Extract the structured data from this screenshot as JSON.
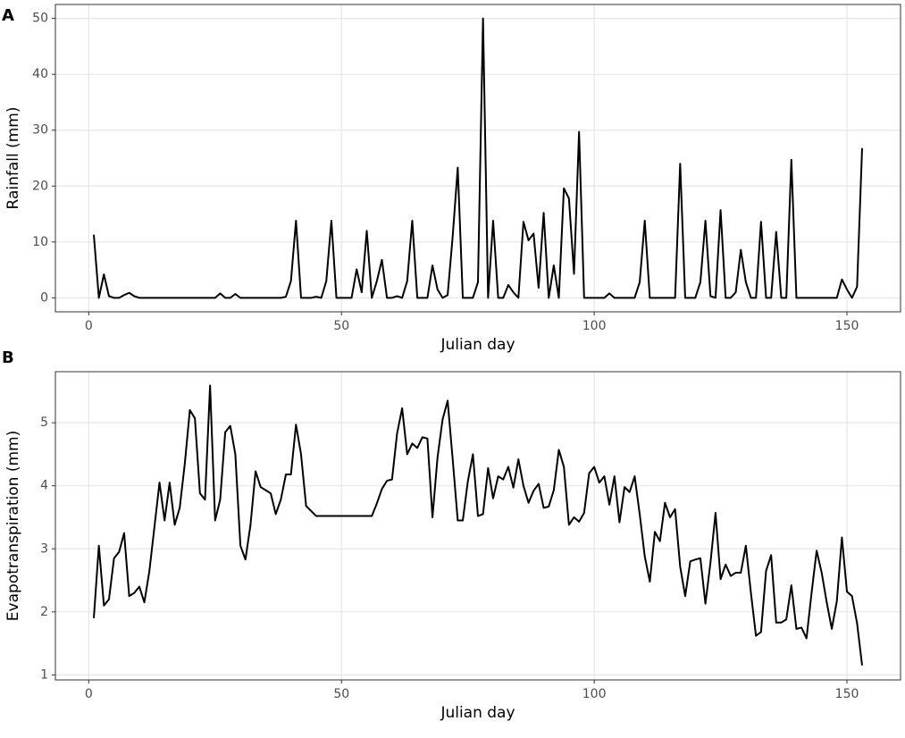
{
  "chart_data": [
    {
      "type": "line",
      "panel_label": "A",
      "xlabel": "Julian day",
      "ylabel": "Rainfall (mm)",
      "color": "#000000",
      "grid": true,
      "xlim": [
        -6.6,
        160.6
      ],
      "ylim": [
        -2.5,
        52.5
      ],
      "xticks": [
        0,
        50,
        100,
        150
      ],
      "yticks": [
        0,
        10,
        20,
        30,
        40,
        50
      ],
      "x": [
        1,
        2,
        3,
        4,
        5,
        6,
        7,
        8,
        9,
        10,
        11,
        12,
        13,
        14,
        15,
        16,
        17,
        18,
        19,
        20,
        21,
        22,
        23,
        24,
        25,
        26,
        27,
        28,
        29,
        30,
        31,
        32,
        33,
        34,
        35,
        36,
        37,
        38,
        39,
        40,
        41,
        42,
        43,
        44,
        45,
        46,
        47,
        48,
        49,
        50,
        51,
        52,
        53,
        54,
        55,
        56,
        57,
        58,
        59,
        60,
        61,
        62,
        63,
        64,
        65,
        66,
        67,
        68,
        69,
        70,
        71,
        72,
        73,
        74,
        75,
        76,
        77,
        78,
        79,
        80,
        81,
        82,
        83,
        84,
        85,
        86,
        87,
        88,
        89,
        90,
        91,
        92,
        93,
        94,
        95,
        96,
        97,
        98,
        99,
        100,
        101,
        102,
        103,
        104,
        105,
        106,
        107,
        108,
        109,
        110,
        111,
        112,
        113,
        114,
        115,
        116,
        117,
        118,
        119,
        120,
        121,
        122,
        123,
        124,
        125,
        126,
        127,
        128,
        129,
        130,
        131,
        132,
        133,
        134,
        135,
        136,
        137,
        138,
        139,
        140,
        141,
        142,
        143,
        144,
        145,
        146,
        147,
        148,
        149,
        150,
        151,
        152,
        153
      ],
      "values": [
        11.3,
        0,
        4.2,
        0.3,
        0,
        0,
        0.5,
        0.9,
        0.3,
        0,
        0,
        0,
        0,
        0,
        0,
        0,
        0,
        0,
        0,
        0,
        0,
        0,
        0,
        0,
        0,
        0.8,
        0,
        0,
        0.7,
        0,
        0,
        0,
        0,
        0,
        0,
        0,
        0,
        0,
        0.2,
        3,
        13.8,
        0,
        0,
        0,
        0.2,
        0,
        3,
        13.8,
        0,
        0,
        0,
        0,
        5.1,
        1,
        12,
        0,
        3,
        6.8,
        0,
        0,
        0.3,
        0,
        3,
        13.8,
        0,
        0,
        0,
        5.8,
        1.5,
        0,
        0.5,
        11,
        23.3,
        0,
        0,
        0,
        2.8,
        50,
        0,
        13.8,
        0,
        0,
        2.3,
        1,
        0,
        13.6,
        10.3,
        11.5,
        1.8,
        15.2,
        0,
        5.8,
        0,
        19.6,
        17.8,
        4.3,
        29.7,
        0,
        0,
        0,
        0,
        0,
        0.8,
        0,
        0,
        0,
        0,
        0,
        2.8,
        13.8,
        0,
        0,
        0,
        0,
        0,
        0,
        24,
        0,
        0,
        0,
        2.8,
        13.8,
        0.3,
        0,
        15.7,
        0,
        0,
        1,
        8.6,
        2.8,
        0,
        0,
        13.6,
        0,
        0,
        11.8,
        0,
        0,
        24.7,
        0,
        0,
        0,
        0,
        0,
        0,
        0,
        0,
        0,
        3.3,
        1.5,
        0,
        2,
        26.8
      ]
    },
    {
      "type": "line",
      "panel_label": "B",
      "xlabel": "Julian day",
      "ylabel": "Evapotranspiration (mm)",
      "color": "#000000",
      "grid": true,
      "xlim": [
        -6.6,
        160.6
      ],
      "ylim": [
        0.92,
        5.81
      ],
      "xticks": [
        0,
        50,
        100,
        150
      ],
      "yticks": [
        1,
        2,
        3,
        4,
        5
      ],
      "x": [
        1,
        2,
        3,
        4,
        5,
        6,
        7,
        8,
        9,
        10,
        11,
        12,
        13,
        14,
        15,
        16,
        17,
        18,
        19,
        20,
        21,
        22,
        23,
        24,
        25,
        26,
        27,
        28,
        29,
        30,
        31,
        32,
        33,
        34,
        35,
        36,
        37,
        38,
        39,
        40,
        41,
        42,
        43,
        44,
        45,
        46,
        47,
        48,
        49,
        50,
        51,
        52,
        53,
        54,
        55,
        56,
        57,
        58,
        59,
        60,
        61,
        62,
        63,
        64,
        65,
        66,
        67,
        68,
        69,
        70,
        71,
        72,
        73,
        74,
        75,
        76,
        77,
        78,
        79,
        80,
        81,
        82,
        83,
        84,
        85,
        86,
        87,
        88,
        89,
        90,
        91,
        92,
        93,
        94,
        95,
        96,
        97,
        98,
        99,
        100,
        101,
        102,
        103,
        104,
        105,
        106,
        107,
        108,
        109,
        110,
        111,
        112,
        113,
        114,
        115,
        116,
        117,
        118,
        119,
        120,
        121,
        122,
        123,
        124,
        125,
        126,
        127,
        128,
        129,
        130,
        131,
        132,
        133,
        134,
        135,
        136,
        137,
        138,
        139,
        140,
        141,
        142,
        143,
        144,
        145,
        146,
        147,
        148,
        149,
        150,
        151,
        152,
        153
      ],
      "values": [
        1.9,
        3.05,
        2.1,
        2.2,
        2.85,
        2.95,
        3.25,
        2.25,
        2.3,
        2.4,
        2.15,
        2.65,
        3.35,
        4.05,
        3.45,
        4.05,
        3.38,
        3.65,
        4.35,
        5.2,
        5.07,
        3.88,
        3.78,
        5.59,
        3.45,
        3.78,
        4.85,
        4.95,
        4.5,
        3.05,
        2.83,
        3.38,
        4.23,
        3.98,
        3.93,
        3.88,
        3.55,
        3.78,
        4.18,
        4.18,
        4.97,
        4.5,
        3.68,
        3.6,
        3.52,
        3.52,
        3.52,
        3.52,
        3.52,
        3.52,
        3.52,
        3.52,
        3.52,
        3.52,
        3.52,
        3.52,
        3.72,
        3.95,
        4.08,
        4.1,
        4.83,
        5.23,
        4.5,
        4.67,
        4.6,
        4.77,
        4.75,
        3.5,
        4.45,
        5.05,
        5.35,
        4.42,
        3.45,
        3.45,
        4.07,
        4.5,
        3.52,
        3.55,
        4.28,
        3.8,
        4.15,
        4.1,
        4.3,
        3.97,
        4.42,
        4.0,
        3.73,
        3.92,
        4.03,
        3.65,
        3.67,
        3.93,
        4.57,
        4.3,
        3.38,
        3.5,
        3.43,
        3.57,
        4.2,
        4.3,
        4.05,
        4.15,
        3.7,
        4.15,
        3.42,
        3.98,
        3.9,
        4.15,
        3.55,
        2.88,
        2.48,
        3.27,
        3.12,
        3.73,
        3.5,
        3.63,
        2.72,
        2.25,
        2.8,
        2.83,
        2.85,
        2.13,
        2.78,
        3.57,
        2.52,
        2.75,
        2.57,
        2.62,
        2.62,
        3.05,
        2.3,
        1.62,
        1.68,
        2.65,
        2.9,
        1.83,
        1.83,
        1.88,
        2.42,
        1.73,
        1.75,
        1.58,
        2.3,
        2.97,
        2.62,
        2.15,
        1.73,
        2.17,
        3.18,
        2.32,
        2.25,
        1.82,
        1.15
      ]
    }
  ]
}
